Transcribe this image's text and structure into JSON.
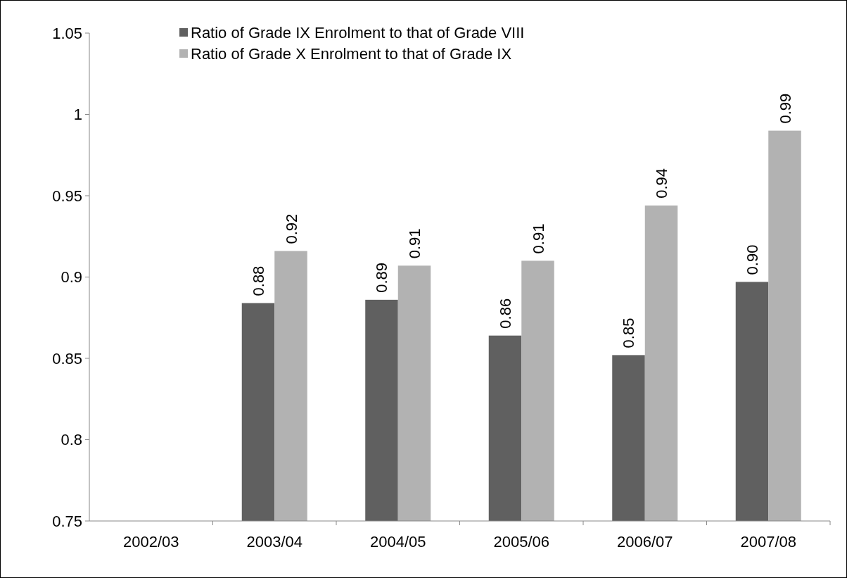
{
  "chart_data": {
    "type": "bar",
    "categories": [
      "2002/03",
      "2003/04",
      "2004/05",
      "2005/06",
      "2006/07",
      "2007/08"
    ],
    "series": [
      {
        "name": "Ratio of Grade IX Enrolment to that of Grade VIII",
        "color": "#606060",
        "values": [
          null,
          0.884,
          0.886,
          0.864,
          0.852,
          0.897
        ],
        "value_labels": [
          null,
          "0.88",
          "0.89",
          "0.86",
          "0.85",
          "0.90"
        ]
      },
      {
        "name": "Ratio of Grade X Enrolment to that of Grade IX",
        "color": "#b2b2b2",
        "values": [
          null,
          0.916,
          0.907,
          0.91,
          0.944,
          0.99
        ],
        "value_labels": [
          null,
          "0.92",
          "0.91",
          "0.91",
          "0.94",
          "0.99"
        ]
      }
    ],
    "ylim": [
      0.75,
      1.05
    ],
    "yticks": [
      0.75,
      0.8,
      0.85,
      0.9,
      0.95,
      1,
      1.05
    ],
    "grid": false,
    "legend": "top"
  }
}
